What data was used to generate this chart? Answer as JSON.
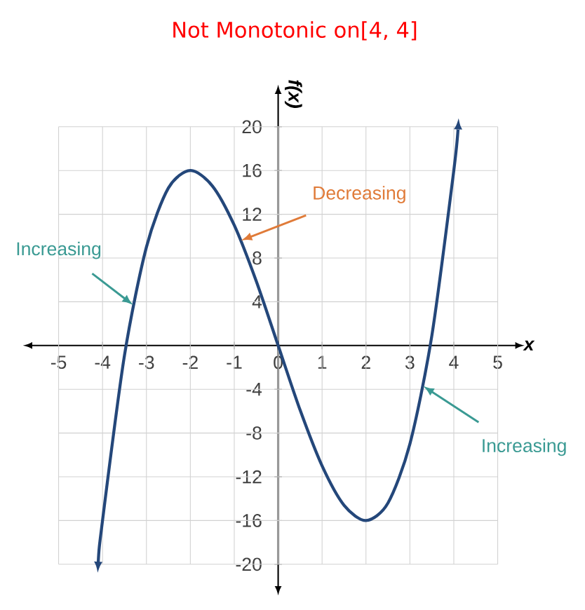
{
  "chart_data": {
    "type": "line",
    "title": "Not Monotonic on[4, 4]",
    "xlabel": "x",
    "ylabel": "f(x)",
    "x": [
      -4.1,
      -4,
      -3.5,
      -3,
      -2.5,
      -2,
      -1.5,
      -1,
      -0.5,
      0,
      0.5,
      1,
      1.5,
      2,
      2.5,
      3,
      3.5,
      4,
      4.1
    ],
    "series": [
      {
        "color": "#24477a",
        "values": [
          -20,
          -16,
          -0.9,
          9,
          14.4,
          16,
          14.6,
          11,
          5.9,
          0,
          -5.9,
          -11,
          -14.6,
          -16,
          -14.4,
          -9,
          0.9,
          16,
          20
        ]
      }
    ],
    "xlim": [
      -5.6,
      5.4
    ],
    "ylim": [
      -22,
      23
    ],
    "xticks": [
      -5,
      -4,
      -3,
      -2,
      -1,
      0,
      1,
      2,
      3,
      4,
      5
    ],
    "yticks": [
      -20,
      -16,
      -12,
      -8,
      -4,
      4,
      8,
      12,
      16,
      20
    ],
    "grid": true,
    "marker": "none",
    "line_style": "solid",
    "annotations": [
      {
        "text": "Increasing",
        "x": -3.3,
        "y": 3.7
      },
      {
        "text": "Decreasing",
        "x": -0.85,
        "y": 9.6
      },
      {
        "text": "Increasing",
        "x": 3.3,
        "y": -3.7
      }
    ]
  }
}
